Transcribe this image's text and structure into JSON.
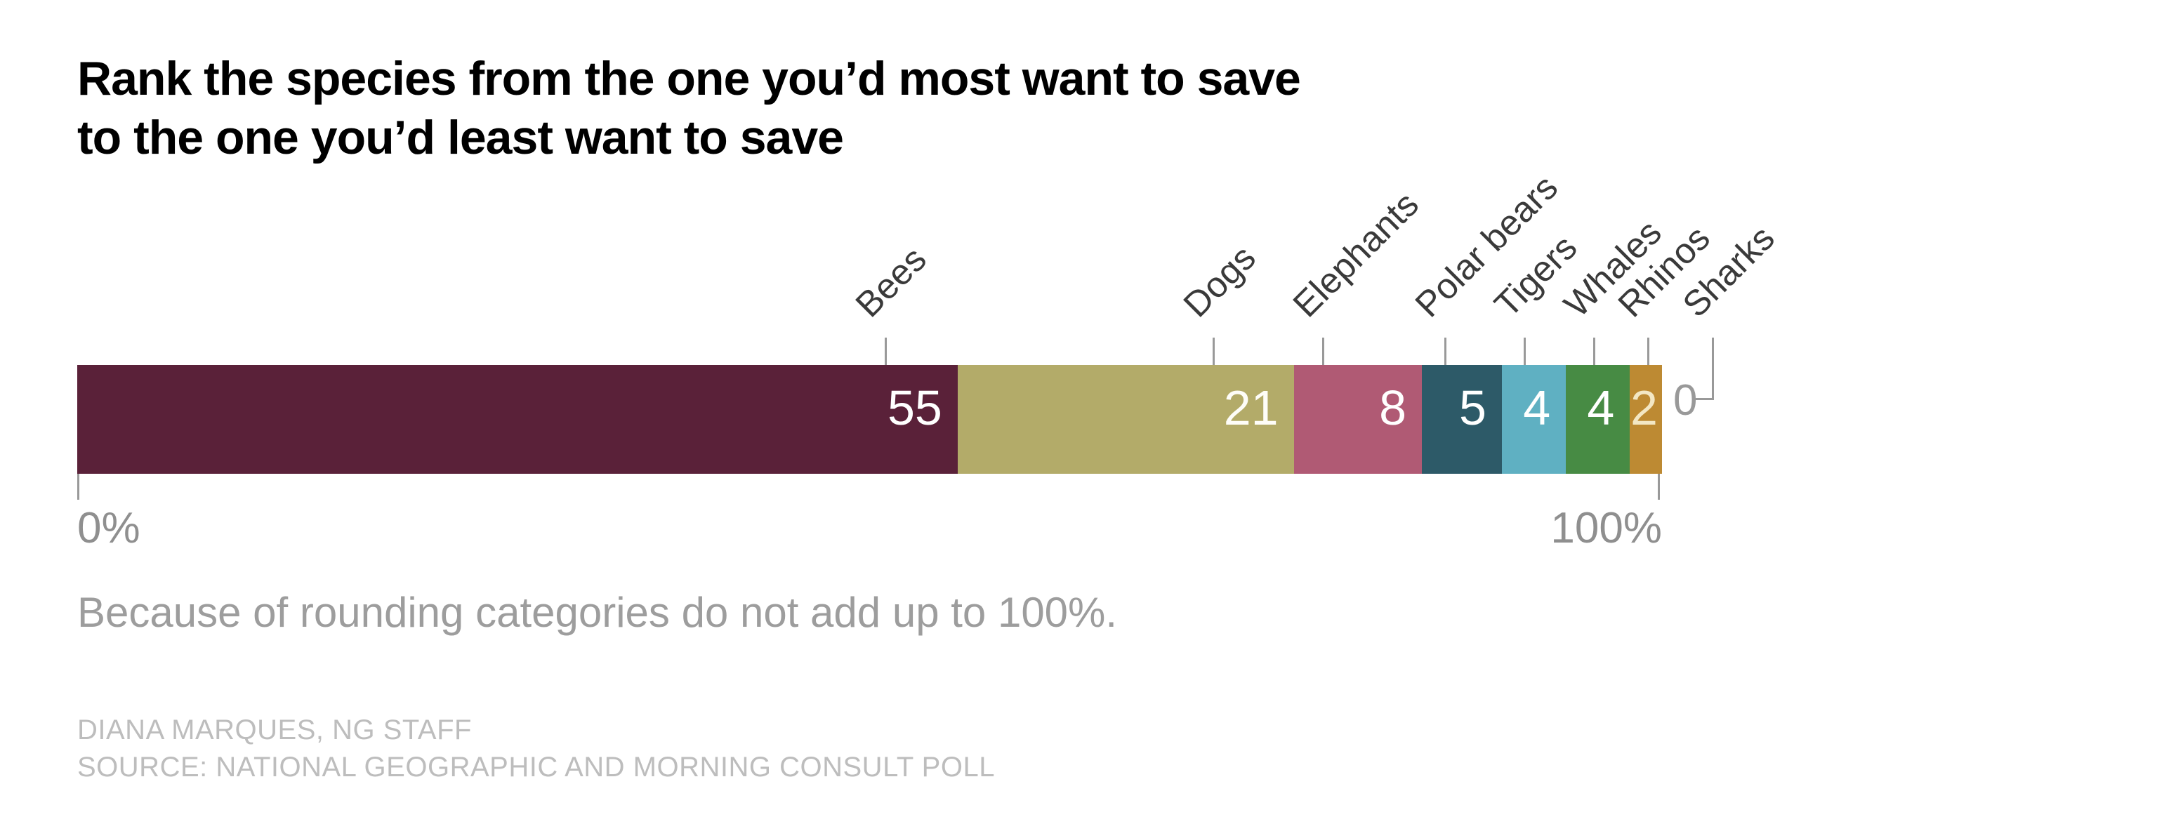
{
  "page": {
    "background": "#ffffff"
  },
  "title": {
    "lines": [
      "Rank the species from the one you’d most want to save",
      "to the one you’d least want to save"
    ]
  },
  "chart_data": {
    "type": "bar",
    "variant": "horizontal-stacked-100pct",
    "title": "Rank the species from the one you’d most want to save to the one you’d least want to save",
    "categories": [
      "Bees",
      "Dogs",
      "Elephants",
      "Polar bears",
      "Tigers",
      "Whales",
      "Rhinos",
      "Sharks"
    ],
    "values": [
      55,
      21,
      8,
      5,
      4,
      4,
      2,
      0
    ],
    "unit": "percent",
    "segment_colors": [
      "#5a2139",
      "#b3ab69",
      "#b05a74",
      "#2d5a68",
      "#5fb0c2",
      "#478b44",
      "#bd8a33",
      null
    ],
    "value_label_colors": [
      "#ffffff",
      "#fefdf8",
      "#ffffff",
      "#ffffff",
      "#ffffff",
      "#ffffff",
      "#f3e7c4",
      "#999999"
    ],
    "category_label_color": "#3a3a3a",
    "tick_color": "#999999",
    "label_tick_pct": [
      51.0,
      71.7,
      78.6,
      86.3,
      91.3,
      95.7,
      99.1,
      103.2
    ],
    "axis": {
      "start_label": "0%",
      "end_label": "100%",
      "min": 0,
      "max": 100
    },
    "grid": false,
    "legend": "none (direct labeling with leader ticks)"
  },
  "footnote": "Because of rounding categories do not add up to 100%.",
  "credits": {
    "line1": "DIANA MARQUES, NG STAFF",
    "line2": "SOURCE: NATIONAL GEOGRAPHIC AND MORNING CONSULT POLL"
  }
}
